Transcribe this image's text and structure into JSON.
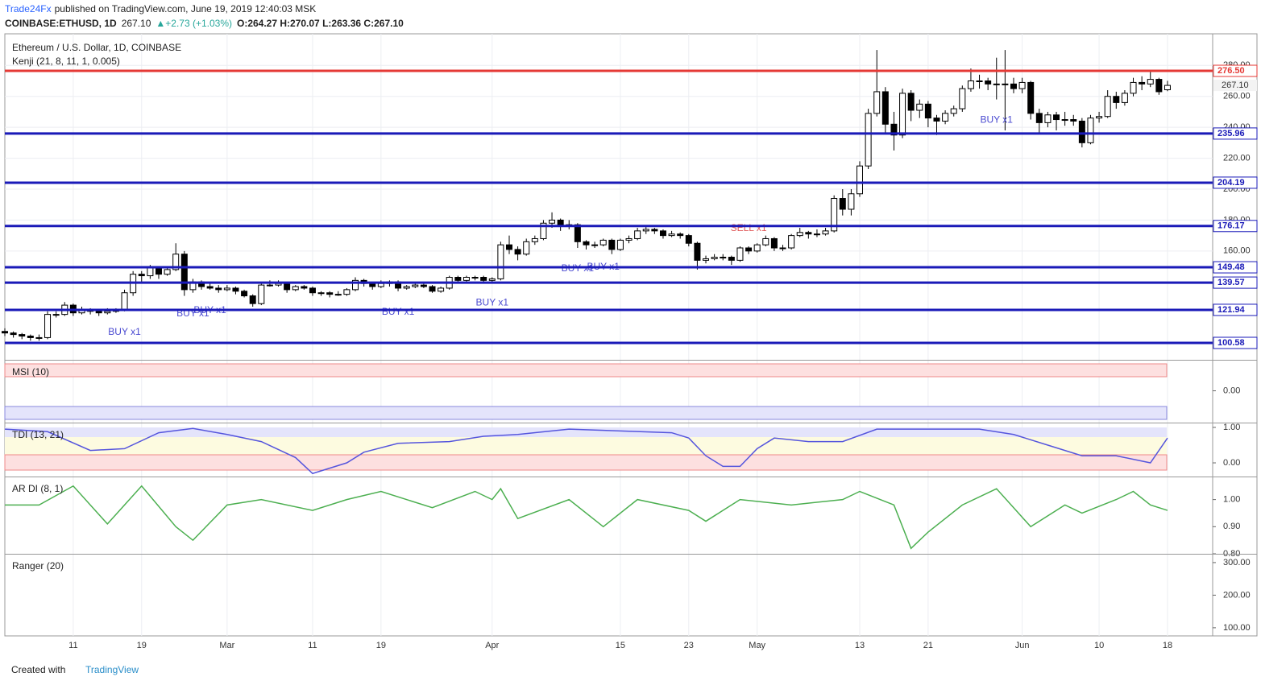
{
  "header": {
    "publisher": "Trade24Fx",
    "published": "published on TradingView.com, June 19, 2019 12:40:03 MSK",
    "symbol": "COINBASE:ETHUSD, 1D",
    "price": "267.10",
    "change": "▲+2.73 (+1.03%)",
    "ohlc_text": "O:264.27 H:270.07 L:263.36 C:267.10"
  },
  "footer": {
    "created": "Created with",
    "brand": "TradingView"
  },
  "chart_data": {
    "type": "candlestick",
    "title": "Ethereum / U.S. Dollar, 1D, COINBASE",
    "subtitle": "Kenji (21, 8, 11, 1, 0.005)",
    "up_color": "#ffffff",
    "down_color": "#000000",
    "grid": true,
    "ylim": [
      89.65,
      297.85
    ],
    "yticks": [
      {
        "value": 160,
        "label": "160.00"
      },
      {
        "value": 180,
        "label": "180.00"
      },
      {
        "value": 200,
        "label": "200.00"
      },
      {
        "value": 220,
        "label": "220.00"
      },
      {
        "value": 240,
        "label": "240.00"
      },
      {
        "value": 260,
        "label": "260.00"
      },
      {
        "value": 280,
        "label": "280.00"
      }
    ],
    "last_price": {
      "value": 267.1,
      "label": "267.10"
    },
    "levels": {
      "values": [
        276.5,
        235.96,
        204.19,
        176.17,
        149.48,
        139.57,
        121.94,
        100.58
      ],
      "value_labels": [
        "276.50",
        "235.96",
        "204.19",
        "176.17",
        "149.48",
        "139.57",
        "121.94",
        "100.58"
      ],
      "colors": [
        "#e53935",
        "#1a1ab8",
        "#1a1ab8",
        "#1a1ab8",
        "#1a1ab8",
        "#1a1ab8",
        "#1a1ab8",
        "#1a1ab8"
      ]
    },
    "categories": [
      null,
      null,
      null,
      null,
      null,
      null,
      null,
      null,
      "11",
      null,
      null,
      null,
      null,
      null,
      null,
      null,
      "19",
      null,
      null,
      null,
      null,
      null,
      null,
      null,
      null,
      null,
      "Mar",
      null,
      null,
      null,
      null,
      null,
      null,
      null,
      null,
      null,
      "11",
      null,
      null,
      null,
      null,
      null,
      null,
      null,
      "19",
      null,
      null,
      null,
      null,
      null,
      null,
      null,
      null,
      null,
      null,
      null,
      null,
      "Apr",
      null,
      null,
      null,
      null,
      null,
      null,
      null,
      null,
      null,
      null,
      null,
      null,
      null,
      null,
      "15",
      null,
      null,
      null,
      null,
      null,
      null,
      null,
      "23",
      null,
      null,
      null,
      null,
      null,
      null,
      null,
      "May",
      null,
      null,
      null,
      null,
      null,
      null,
      null,
      null,
      null,
      null,
      null,
      "13",
      null,
      null,
      null,
      null,
      null,
      null,
      null,
      "21",
      null,
      null,
      null,
      null,
      null,
      null,
      null,
      null,
      null,
      null,
      "Jun",
      null,
      null,
      null,
      null,
      null,
      null,
      null,
      null,
      "10",
      null,
      null,
      null,
      null,
      null,
      null,
      null,
      "18",
      null
    ],
    "ohlc": [
      [
        108,
        110,
        105,
        107
      ],
      [
        107,
        108,
        104,
        106
      ],
      [
        106,
        107,
        103,
        105
      ],
      [
        105,
        106,
        102,
        104
      ],
      [
        104,
        106,
        102,
        104
      ],
      [
        104,
        121,
        103,
        119
      ],
      [
        119,
        121,
        117,
        119
      ],
      [
        119,
        127,
        118,
        125
      ],
      [
        125,
        126,
        118,
        120
      ],
      [
        120,
        124,
        119,
        122
      ],
      [
        122,
        123,
        119,
        121
      ],
      [
        121,
        122,
        118,
        120
      ],
      [
        120,
        123,
        119,
        121
      ],
      [
        121,
        123,
        120,
        122
      ],
      [
        122,
        135,
        121,
        133
      ],
      [
        133,
        147,
        131,
        145
      ],
      [
        145,
        147,
        140,
        144
      ],
      [
        144,
        151,
        142,
        149
      ],
      [
        149,
        150,
        142,
        145
      ],
      [
        145,
        150,
        144,
        148
      ],
      [
        148,
        165,
        147,
        158
      ],
      [
        158,
        160,
        131,
        135
      ],
      [
        135,
        142,
        133,
        140
      ],
      [
        140,
        141,
        135,
        137
      ],
      [
        137,
        140,
        135,
        136
      ],
      [
        136,
        138,
        133,
        135
      ],
      [
        135,
        138,
        134,
        136
      ],
      [
        136,
        137,
        132,
        134
      ],
      [
        134,
        135,
        130,
        131
      ],
      [
        131,
        132,
        124,
        126
      ],
      [
        126,
        139,
        125,
        138
      ],
      [
        138,
        141,
        137,
        138
      ],
      [
        138,
        141,
        137,
        139
      ],
      [
        139,
        140,
        133,
        135
      ],
      [
        135,
        138,
        134,
        137
      ],
      [
        137,
        138,
        135,
        136
      ],
      [
        136,
        137,
        131,
        133
      ],
      [
        133,
        134,
        131,
        133
      ],
      [
        133,
        134,
        130,
        132
      ],
      [
        132,
        134,
        131,
        132
      ],
      [
        132,
        136,
        131,
        135
      ],
      [
        135,
        143,
        134,
        141
      ],
      [
        141,
        142,
        137,
        139
      ],
      [
        139,
        140,
        135,
        137
      ],
      [
        137,
        141,
        136,
        139
      ],
      [
        139,
        141,
        137,
        140
      ],
      [
        140,
        141,
        134,
        136
      ],
      [
        136,
        138,
        135,
        137
      ],
      [
        137,
        139,
        136,
        138
      ],
      [
        138,
        139,
        136,
        137
      ],
      [
        137,
        138,
        133,
        134
      ],
      [
        134,
        137,
        133,
        136
      ],
      [
        136,
        144,
        135,
        143
      ],
      [
        143,
        144,
        139,
        141
      ],
      [
        141,
        144,
        140,
        143
      ],
      [
        143,
        144,
        141,
        143
      ],
      [
        143,
        144,
        140,
        141
      ],
      [
        141,
        143,
        140,
        142
      ],
      [
        142,
        166,
        141,
        164
      ],
      [
        164,
        170,
        158,
        161
      ],
      [
        161,
        163,
        154,
        158
      ],
      [
        158,
        168,
        157,
        166
      ],
      [
        166,
        170,
        164,
        168
      ],
      [
        168,
        180,
        167,
        178
      ],
      [
        178,
        185,
        175,
        180
      ],
      [
        180,
        181,
        173,
        176
      ],
      [
        176,
        180,
        174,
        177
      ],
      [
        177,
        178,
        162,
        166
      ],
      [
        166,
        167,
        161,
        164
      ],
      [
        164,
        166,
        162,
        164
      ],
      [
        164,
        168,
        163,
        167
      ],
      [
        167,
        168,
        158,
        161
      ],
      [
        161,
        168,
        160,
        167
      ],
      [
        167,
        170,
        165,
        168
      ],
      [
        168,
        175,
        167,
        173
      ],
      [
        173,
        176,
        171,
        174
      ],
      [
        174,
        175,
        171,
        173
      ],
      [
        173,
        174,
        168,
        170
      ],
      [
        170,
        173,
        169,
        171
      ],
      [
        171,
        172,
        168,
        170
      ],
      [
        170,
        171,
        163,
        165
      ],
      [
        165,
        166,
        148,
        154
      ],
      [
        154,
        157,
        152,
        155
      ],
      [
        155,
        158,
        154,
        156
      ],
      [
        156,
        158,
        154,
        156
      ],
      [
        156,
        157,
        151,
        154
      ],
      [
        154,
        163,
        153,
        162
      ],
      [
        162,
        163,
        158,
        160
      ],
      [
        160,
        165,
        159,
        164
      ],
      [
        164,
        170,
        163,
        168
      ],
      [
        168,
        169,
        160,
        162
      ],
      [
        162,
        164,
        160,
        162
      ],
      [
        162,
        171,
        161,
        170
      ],
      [
        170,
        175,
        169,
        172
      ],
      [
        172,
        173,
        168,
        171
      ],
      [
        171,
        174,
        169,
        171
      ],
      [
        171,
        175,
        170,
        173
      ],
      [
        173,
        196,
        172,
        194
      ],
      [
        194,
        200,
        183,
        187
      ],
      [
        187,
        200,
        183,
        197
      ],
      [
        197,
        218,
        195,
        215
      ],
      [
        215,
        252,
        213,
        249
      ],
      [
        249,
        290,
        247,
        263
      ],
      [
        263,
        266,
        236,
        242
      ],
      [
        242,
        250,
        225,
        235
      ],
      [
        235,
        265,
        233,
        262
      ],
      [
        262,
        264,
        244,
        251
      ],
      [
        251,
        258,
        246,
        255
      ],
      [
        255,
        257,
        240,
        246
      ],
      [
        246,
        248,
        235,
        244
      ],
      [
        244,
        251,
        242,
        249
      ],
      [
        249,
        254,
        247,
        252
      ],
      [
        252,
        267,
        250,
        265
      ],
      [
        265,
        278,
        263,
        270
      ],
      [
        270,
        274,
        265,
        270
      ],
      [
        270,
        272,
        264,
        268
      ],
      [
        268,
        285,
        258,
        268
      ],
      [
        268,
        290,
        238,
        268
      ],
      [
        268,
        272,
        262,
        265
      ],
      [
        265,
        272,
        262,
        269
      ],
      [
        269,
        270,
        245,
        249
      ],
      [
        249,
        252,
        236,
        243
      ],
      [
        243,
        250,
        240,
        248
      ],
      [
        248,
        250,
        238,
        245
      ],
      [
        245,
        250,
        241,
        245
      ],
      [
        245,
        248,
        241,
        244
      ],
      [
        244,
        246,
        227,
        230
      ],
      [
        230,
        248,
        229,
        246
      ],
      [
        246,
        250,
        243,
        247
      ],
      [
        247,
        264,
        246,
        260
      ],
      [
        260,
        263,
        252,
        256
      ],
      [
        256,
        264,
        254,
        262
      ],
      [
        262,
        272,
        260,
        269
      ],
      [
        269,
        273,
        264,
        268
      ],
      [
        268,
        276,
        266,
        271
      ],
      [
        271,
        272,
        261,
        263
      ],
      [
        264.27,
        270.07,
        263.36,
        267.1
      ]
    ],
    "signals": [
      {
        "text": "BUY x1",
        "index": 14,
        "side": "buy"
      },
      {
        "text": "BUY x1",
        "index": 22,
        "side": "buy"
      },
      {
        "text": "BUY x1",
        "index": 24,
        "side": "buy"
      },
      {
        "text": "BUY x1",
        "index": 46,
        "side": "buy"
      },
      {
        "text": "BUY x1",
        "index": 57,
        "side": "buy"
      },
      {
        "text": "BUY x1",
        "index": 67,
        "side": "buy"
      },
      {
        "text": "BUY x1",
        "index": 70,
        "side": "buy"
      },
      {
        "text": "SELL x1",
        "index": 87,
        "side": "sell"
      },
      {
        "text": "BUY x1",
        "index": 116,
        "side": "buy"
      }
    ],
    "panes": [
      {
        "title": "MSI (10)",
        "ylim": [
          -1,
          1
        ],
        "yticks": [
          {
            "value": 0,
            "label": "0.00"
          }
        ]
      },
      {
        "title": "TDI (13, 21)",
        "ylim": [
          -0.34,
          1.09
        ],
        "yticks": [
          {
            "value": 0,
            "label": "0.00"
          },
          {
            "value": 1,
            "label": "1.00"
          }
        ],
        "color": "#5555dd",
        "x": [
          0,
          5,
          10,
          14,
          18,
          22,
          26,
          30,
          34,
          36,
          40,
          42,
          46,
          52,
          56,
          60,
          66,
          72,
          78,
          80,
          82,
          84,
          86,
          88,
          90,
          94,
          98,
          102,
          108,
          114,
          118,
          122,
          126,
          130,
          134,
          136
        ],
        "values": [
          0.95,
          0.88,
          0.35,
          0.4,
          0.85,
          0.97,
          0.8,
          0.6,
          0.15,
          -0.3,
          0.0,
          0.3,
          0.55,
          0.6,
          0.75,
          0.8,
          0.95,
          0.9,
          0.85,
          0.7,
          0.2,
          -0.1,
          -0.1,
          0.4,
          0.7,
          0.6,
          0.6,
          0.95,
          0.95,
          0.95,
          0.8,
          0.5,
          0.2,
          0.2,
          0.0,
          0.7
        ]
      },
      {
        "title": "AR DI (8, 1)",
        "ylim": [
          0.8,
          1.079
        ],
        "yticks": [
          {
            "value": 0.8,
            "label": "0.80"
          },
          {
            "value": 0.9,
            "label": "0.90"
          },
          {
            "value": 1,
            "label": "1.00"
          }
        ],
        "color": "#4caf50",
        "x": [
          0,
          4,
          8,
          12,
          16,
          20,
          22,
          26,
          30,
          36,
          40,
          44,
          50,
          55,
          57,
          58,
          60,
          66,
          70,
          74,
          80,
          82,
          86,
          92,
          98,
          100,
          104,
          106,
          108,
          112,
          116,
          120,
          124,
          126,
          130,
          132,
          134,
          136
        ],
        "values": [
          0.98,
          0.98,
          1.05,
          0.91,
          1.05,
          0.9,
          0.85,
          0.98,
          1.0,
          0.96,
          1.0,
          1.03,
          0.97,
          1.03,
          1.0,
          1.04,
          0.93,
          1.0,
          0.9,
          1.0,
          0.96,
          0.92,
          1.0,
          0.98,
          1.0,
          1.03,
          0.98,
          0.82,
          0.88,
          0.98,
          1.04,
          0.9,
          0.98,
          0.95,
          1.0,
          1.03,
          0.98,
          0.96
        ]
      },
      {
        "title": "Ranger (20)",
        "ylim": [
          75,
          322
        ],
        "yticks": [
          {
            "value": 100,
            "label": "100.00"
          },
          {
            "value": 200,
            "label": "200.00"
          },
          {
            "value": 300,
            "label": "300.00"
          }
        ]
      }
    ]
  }
}
